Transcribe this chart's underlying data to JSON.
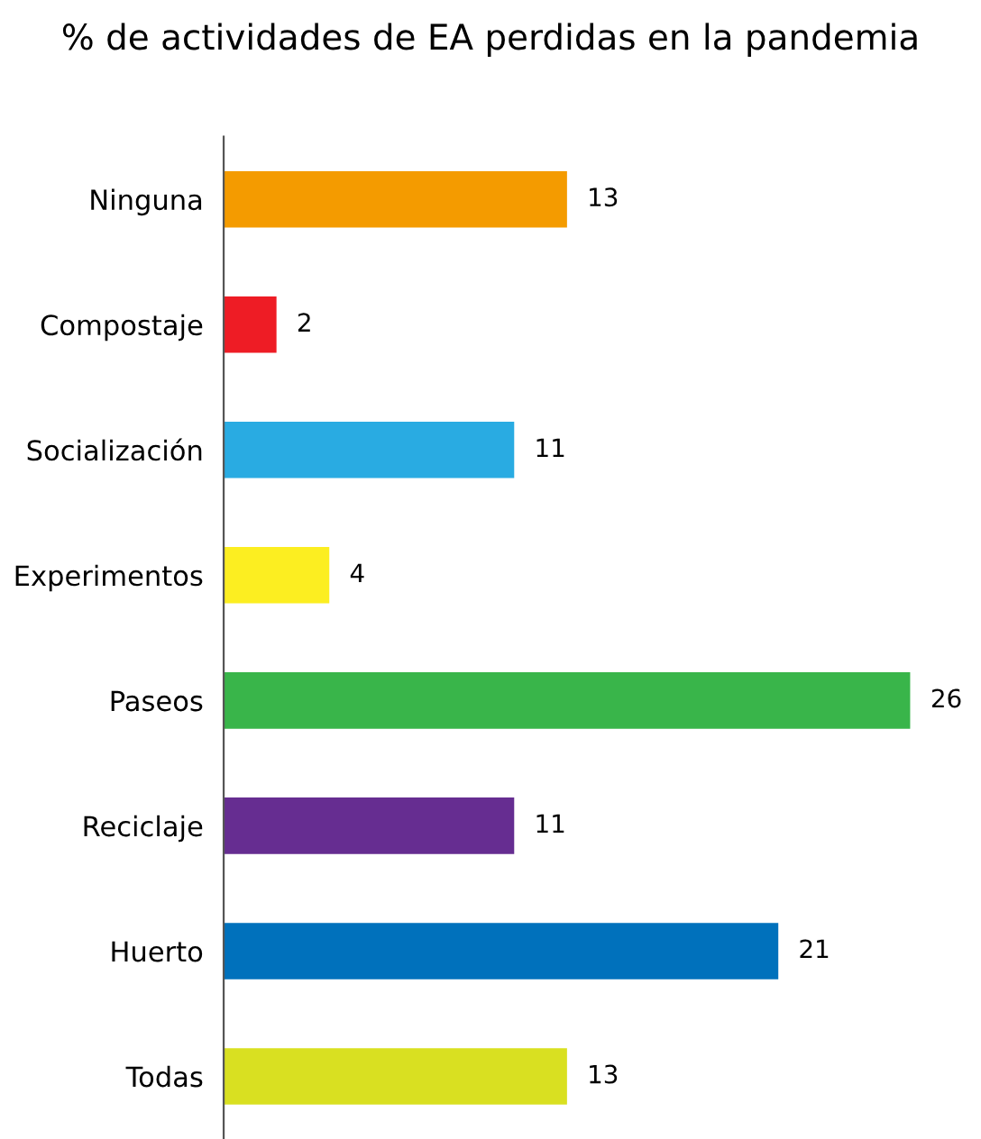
{
  "chart_data": {
    "type": "bar",
    "orientation": "horizontal",
    "title": "% de actividades de EA perdidas en la pandemia",
    "categories": [
      "Ninguna",
      "Compostaje",
      "Socialización",
      "Experimentos",
      "Paseos",
      "Reciclaje",
      "Huerto",
      "Todas"
    ],
    "values": [
      13,
      2,
      11,
      4,
      26,
      11,
      21,
      13
    ],
    "colors": [
      "#f49b00",
      "#ee1c25",
      "#29abe2",
      "#fcee21",
      "#39b54a",
      "#662d91",
      "#0071bc",
      "#d9e021"
    ],
    "tick_labels": "y",
    "data_labels": true,
    "grid": false,
    "legend": false
  }
}
